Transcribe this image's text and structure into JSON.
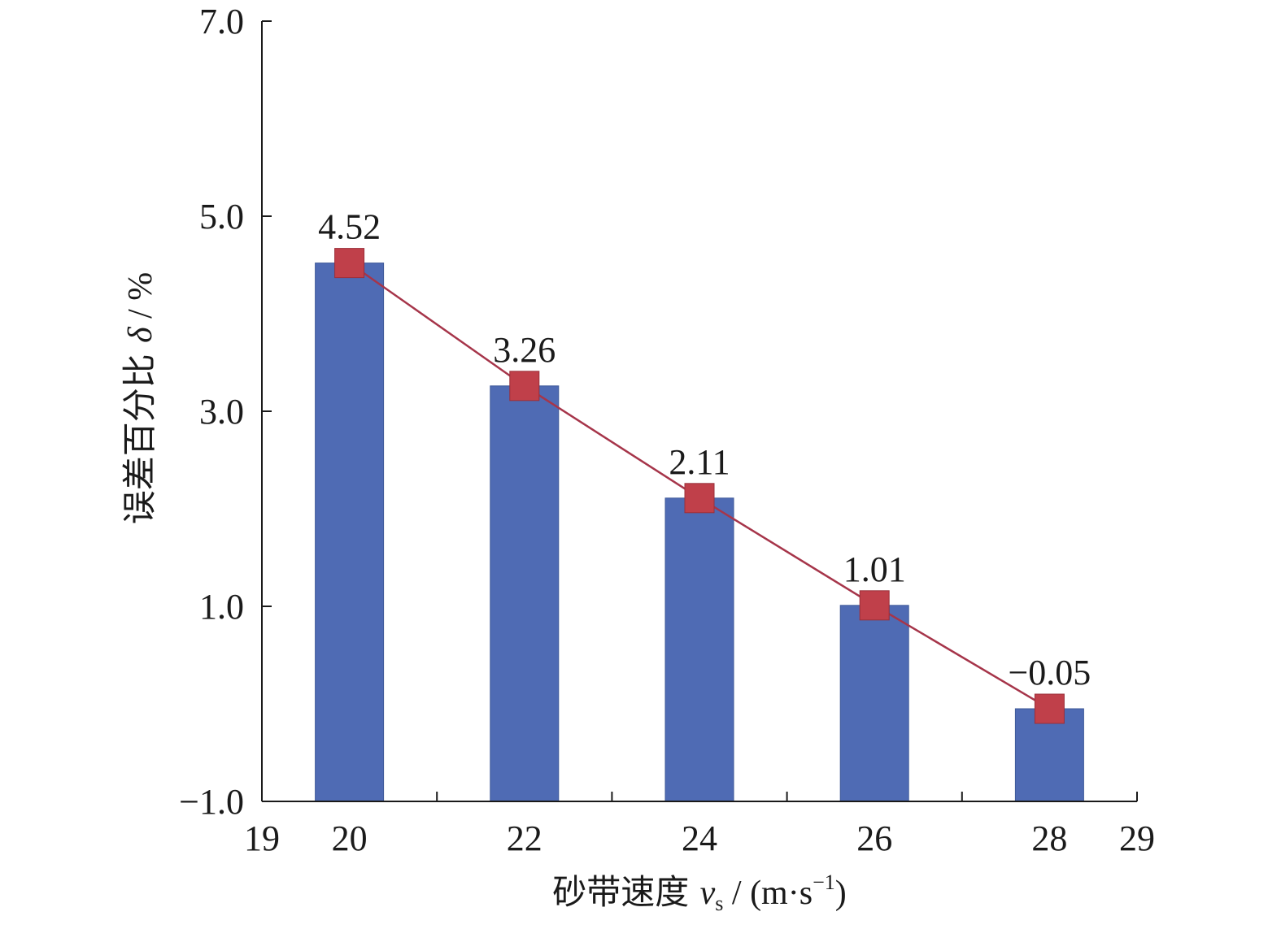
{
  "chart_data": {
    "type": "bar",
    "x": [
      20,
      22,
      24,
      26,
      28
    ],
    "values": [
      4.52,
      3.26,
      2.11,
      1.01,
      -0.05
    ],
    "data_labels": [
      "4.52",
      "3.26",
      "2.11",
      "1.01",
      "−0.05"
    ],
    "xlim": [
      19,
      29
    ],
    "ylim": [
      -1.0,
      7.0
    ],
    "x_ticks_major": [
      19,
      29
    ],
    "x_ticks_labeled": [
      20,
      22,
      24,
      26,
      28
    ],
    "x_tick_marks": [
      19,
      21,
      23,
      25,
      27,
      29
    ],
    "y_ticks": [
      -1.0,
      1.0,
      3.0,
      5.0,
      7.0
    ],
    "y_tick_labels": [
      "−1.0",
      "1.0",
      "3.0",
      "5.0",
      "7.0"
    ],
    "xlabel": {
      "main": "砂带速度 ",
      "symbol": "v",
      "subscript": "s",
      "unit": " / (m·s",
      "superscript": "−1",
      "close": ")"
    },
    "ylabel": {
      "main": "误差百分比 ",
      "symbol": "δ",
      "unit": " / %"
    },
    "grid": false,
    "legend": "none",
    "colors": {
      "bar": "#4f6bb4",
      "marker": "#c0404a",
      "line": "#a6354a",
      "axis": "#1a1a1a"
    }
  }
}
